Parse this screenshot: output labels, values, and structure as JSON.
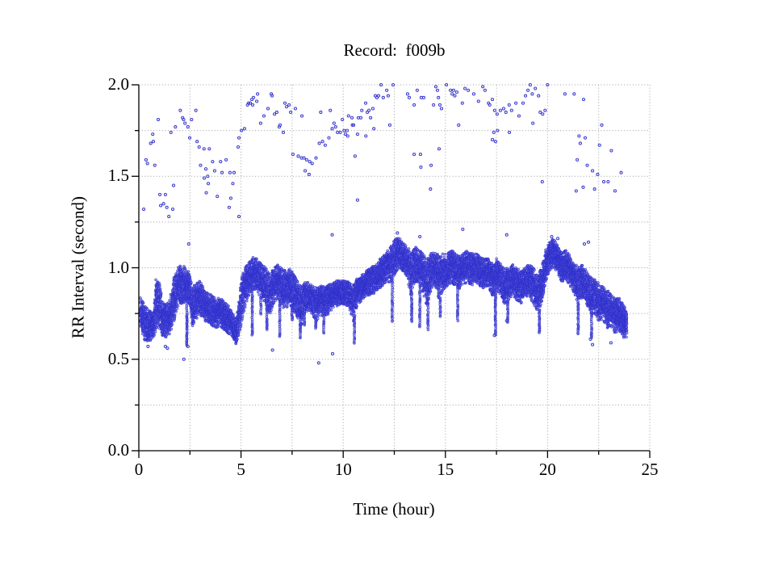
{
  "figure": {
    "background": "#ffffff"
  },
  "chart_data": {
    "type": "scatter",
    "title": "Record:  f009b",
    "xlabel": "Time (hour)",
    "ylabel": "RR Interval (second)",
    "xlim": [
      0,
      25
    ],
    "ylim": [
      0.0,
      2.0
    ],
    "x_major_ticks": [
      0,
      5,
      10,
      15,
      20,
      25
    ],
    "x_tick_labels": [
      "0",
      "5",
      "10",
      "15",
      "20",
      "25"
    ],
    "x_minor_step": 2.5,
    "y_major_ticks": [
      0.0,
      0.5,
      1.0,
      1.5,
      2.0
    ],
    "y_tick_labels": [
      "0.0",
      "0.5",
      "1.0",
      "1.5",
      "2.0"
    ],
    "y_minor_step": 0.25,
    "grid": {
      "style": "dotted",
      "color": "#9f9f9f",
      "at_every_minor_tick": true
    },
    "axis_color": "#000000",
    "marker": {
      "shape": "open-circle",
      "edge_color": "#3434cf",
      "fill_color": "#8585e0",
      "radius_px": 1.4
    },
    "description": "24-hour RR-interval tachogram: dense beat-to-beat band around 0.6-1.15 s plus sparse ectopic/artifact points between 1.1 and 2.0 s; band rendered from envelope, sparse points listed explicitly",
    "band_envelope": [
      [
        0.1,
        0.66,
        0.84
      ],
      [
        0.3,
        0.6,
        0.79
      ],
      [
        0.5,
        0.6,
        0.77
      ],
      [
        0.7,
        0.61,
        0.75
      ],
      [
        0.85,
        0.65,
        0.97
      ],
      [
        1.0,
        0.66,
        0.93
      ],
      [
        1.15,
        0.63,
        0.82
      ],
      [
        1.35,
        0.62,
        0.8
      ],
      [
        1.55,
        0.64,
        0.85
      ],
      [
        1.7,
        0.7,
        0.95
      ],
      [
        1.9,
        0.78,
        1.0
      ],
      [
        2.1,
        0.8,
        1.02
      ],
      [
        2.3,
        0.82,
        1.0
      ],
      [
        2.5,
        0.8,
        0.97
      ],
      [
        2.62,
        0.68,
        0.88
      ],
      [
        2.8,
        0.72,
        0.93
      ],
      [
        3.0,
        0.74,
        0.93
      ],
      [
        3.2,
        0.71,
        0.88
      ],
      [
        3.4,
        0.7,
        0.86
      ],
      [
        3.6,
        0.68,
        0.85
      ],
      [
        3.8,
        0.67,
        0.83
      ],
      [
        4.0,
        0.68,
        0.84
      ],
      [
        4.2,
        0.66,
        0.81
      ],
      [
        4.4,
        0.64,
        0.79
      ],
      [
        4.6,
        0.62,
        0.75
      ],
      [
        4.75,
        0.59,
        0.71
      ],
      [
        4.9,
        0.63,
        0.82
      ],
      [
        5.05,
        0.7,
        0.96
      ],
      [
        5.2,
        0.78,
        1.0
      ],
      [
        5.4,
        0.85,
        1.03
      ],
      [
        5.6,
        0.88,
        1.06
      ],
      [
        5.8,
        0.87,
        1.05
      ],
      [
        6.0,
        0.83,
        1.02
      ],
      [
        6.2,
        0.8,
        1.0
      ],
      [
        6.4,
        0.74,
        0.97
      ],
      [
        6.6,
        0.8,
        1.0
      ],
      [
        6.8,
        0.84,
        1.02
      ],
      [
        7.0,
        0.78,
        1.0
      ],
      [
        7.2,
        0.78,
        0.98
      ],
      [
        7.4,
        0.8,
        1.0
      ],
      [
        7.6,
        0.76,
        0.96
      ],
      [
        7.8,
        0.72,
        0.92
      ],
      [
        7.95,
        0.68,
        0.9
      ],
      [
        8.1,
        0.74,
        0.92
      ],
      [
        8.3,
        0.77,
        0.92
      ],
      [
        8.5,
        0.74,
        0.9
      ],
      [
        8.7,
        0.71,
        0.89
      ],
      [
        8.9,
        0.74,
        0.9
      ],
      [
        9.1,
        0.73,
        0.9
      ],
      [
        9.3,
        0.75,
        0.91
      ],
      [
        9.5,
        0.78,
        0.92
      ],
      [
        9.7,
        0.79,
        0.93
      ],
      [
        9.9,
        0.8,
        0.93
      ],
      [
        10.1,
        0.8,
        0.93
      ],
      [
        10.3,
        0.78,
        0.92
      ],
      [
        10.5,
        0.7,
        0.9
      ],
      [
        10.7,
        0.8,
        0.95
      ],
      [
        10.9,
        0.82,
        0.96
      ],
      [
        11.1,
        0.84,
        0.98
      ],
      [
        11.3,
        0.85,
        1.0
      ],
      [
        11.5,
        0.86,
        1.02
      ],
      [
        11.7,
        0.88,
        1.04
      ],
      [
        11.9,
        0.9,
        1.06
      ],
      [
        12.1,
        0.92,
        1.08
      ],
      [
        12.3,
        0.92,
        1.12
      ],
      [
        12.5,
        0.96,
        1.15
      ],
      [
        12.7,
        1.0,
        1.17
      ],
      [
        12.9,
        0.98,
        1.14
      ],
      [
        13.1,
        0.95,
        1.12
      ],
      [
        13.3,
        0.85,
        1.1
      ],
      [
        13.5,
        0.92,
        1.12
      ],
      [
        13.7,
        0.92,
        1.1
      ],
      [
        13.9,
        0.86,
        1.08
      ],
      [
        14.1,
        0.78,
        1.05
      ],
      [
        14.3,
        0.88,
        1.08
      ],
      [
        14.5,
        0.9,
        1.1
      ],
      [
        14.7,
        0.82,
        1.06
      ],
      [
        14.9,
        0.88,
        1.08
      ],
      [
        15.1,
        0.9,
        1.08
      ],
      [
        15.3,
        0.92,
        1.1
      ],
      [
        15.5,
        0.9,
        1.08
      ],
      [
        15.7,
        0.88,
        1.06
      ],
      [
        15.9,
        0.9,
        1.08
      ],
      [
        16.1,
        0.92,
        1.1
      ],
      [
        16.3,
        0.9,
        1.08
      ],
      [
        16.5,
        0.92,
        1.08
      ],
      [
        16.7,
        0.9,
        1.06
      ],
      [
        16.9,
        0.88,
        1.05
      ],
      [
        17.1,
        0.9,
        1.05
      ],
      [
        17.3,
        0.85,
        1.02
      ],
      [
        17.5,
        0.88,
        1.05
      ],
      [
        17.7,
        0.85,
        1.02
      ],
      [
        17.9,
        0.8,
        1.0
      ],
      [
        18.1,
        0.82,
        1.0
      ],
      [
        18.3,
        0.85,
        1.02
      ],
      [
        18.5,
        0.82,
        1.0
      ],
      [
        18.7,
        0.8,
        0.98
      ],
      [
        18.9,
        0.84,
        1.0
      ],
      [
        19.1,
        0.85,
        1.02
      ],
      [
        19.3,
        0.8,
        1.0
      ],
      [
        19.5,
        0.74,
        0.96
      ],
      [
        19.7,
        0.8,
        1.0
      ],
      [
        19.9,
        0.92,
        1.1
      ],
      [
        20.1,
        0.99,
        1.14
      ],
      [
        20.3,
        1.0,
        1.16
      ],
      [
        20.5,
        0.97,
        1.12
      ],
      [
        20.7,
        0.92,
        1.08
      ],
      [
        20.9,
        0.94,
        1.1
      ],
      [
        21.1,
        0.9,
        1.07
      ],
      [
        21.3,
        0.86,
        1.04
      ],
      [
        21.5,
        0.8,
        1.0
      ],
      [
        21.7,
        0.84,
        1.02
      ],
      [
        21.9,
        0.8,
        0.98
      ],
      [
        22.1,
        0.74,
        0.95
      ],
      [
        22.3,
        0.75,
        0.94
      ],
      [
        22.5,
        0.71,
        0.92
      ],
      [
        22.7,
        0.72,
        0.9
      ],
      [
        22.9,
        0.67,
        0.88
      ],
      [
        23.1,
        0.68,
        0.86
      ],
      [
        23.3,
        0.64,
        0.83
      ],
      [
        23.5,
        0.66,
        0.84
      ],
      [
        23.7,
        0.61,
        0.8
      ],
      [
        23.88,
        0.62,
        0.78
      ]
    ],
    "down_spikes": [
      [
        2.35,
        0.57
      ],
      [
        4.75,
        0.58
      ],
      [
        5.55,
        0.63
      ],
      [
        5.97,
        0.75
      ],
      [
        6.26,
        0.66
      ],
      [
        6.9,
        0.62
      ],
      [
        7.5,
        0.71
      ],
      [
        7.9,
        0.62
      ],
      [
        8.1,
        0.68
      ],
      [
        8.65,
        0.66
      ],
      [
        9.05,
        0.64
      ],
      [
        10.55,
        0.59
      ],
      [
        12.4,
        0.7
      ],
      [
        13.35,
        0.7
      ],
      [
        13.75,
        0.67
      ],
      [
        14.15,
        0.65
      ],
      [
        14.75,
        0.73
      ],
      [
        15.6,
        0.7
      ],
      [
        17.45,
        0.63
      ],
      [
        18.05,
        0.7
      ],
      [
        19.6,
        0.64
      ],
      [
        21.5,
        0.64
      ],
      [
        22.15,
        0.62
      ]
    ],
    "outliers_high": [
      [
        0.24,
        1.32
      ],
      [
        0.35,
        1.59
      ],
      [
        0.42,
        1.57
      ],
      [
        0.58,
        1.68
      ],
      [
        0.68,
        1.73
      ],
      [
        0.71,
        1.69
      ],
      [
        0.78,
        1.56
      ],
      [
        0.95,
        1.81
      ],
      [
        1.03,
        1.4
      ],
      [
        1.07,
        1.34
      ],
      [
        1.21,
        1.35
      ],
      [
        1.3,
        1.4
      ],
      [
        1.37,
        1.33
      ],
      [
        1.47,
        1.28
      ],
      [
        1.57,
        1.74
      ],
      [
        1.66,
        1.32
      ],
      [
        1.7,
        1.45
      ],
      [
        1.79,
        1.77
      ],
      [
        2.03,
        1.86
      ],
      [
        2.14,
        1.82
      ],
      [
        2.19,
        1.81
      ],
      [
        2.26,
        1.79
      ],
      [
        2.4,
        1.77
      ],
      [
        2.44,
        1.13
      ],
      [
        2.49,
        1.71
      ],
      [
        2.58,
        1.81
      ],
      [
        2.79,
        1.86
      ],
      [
        2.85,
        1.69
      ],
      [
        2.95,
        1.66
      ],
      [
        3.02,
        1.56
      ],
      [
        3.19,
        1.65
      ],
      [
        3.2,
        1.49
      ],
      [
        3.28,
        1.54
      ],
      [
        3.3,
        1.41
      ],
      [
        3.37,
        1.5
      ],
      [
        3.4,
        1.46
      ],
      [
        3.45,
        1.65
      ],
      [
        3.61,
        1.58
      ],
      [
        3.71,
        1.53
      ],
      [
        3.84,
        1.39
      ],
      [
        4.0,
        1.58
      ],
      [
        4.07,
        1.52
      ],
      [
        4.27,
        1.59
      ],
      [
        4.42,
        1.33
      ],
      [
        4.46,
        1.52
      ],
      [
        4.5,
        1.38
      ],
      [
        4.6,
        1.46
      ],
      [
        4.66,
        1.52
      ],
      [
        4.9,
        1.28
      ],
      [
        4.86,
        1.66
      ],
      [
        4.9,
        1.71
      ],
      [
        5.02,
        1.75
      ],
      [
        5.17,
        1.76
      ],
      [
        5.32,
        1.89
      ],
      [
        5.37,
        1.9
      ],
      [
        5.45,
        1.9
      ],
      [
        5.53,
        1.92
      ],
      [
        5.57,
        1.89
      ],
      [
        5.61,
        1.93
      ],
      [
        5.77,
        1.91
      ],
      [
        5.81,
        1.95
      ],
      [
        5.96,
        1.79
      ],
      [
        6.12,
        1.83
      ],
      [
        6.32,
        1.87
      ],
      [
        6.48,
        1.95
      ],
      [
        6.52,
        1.94
      ],
      [
        6.64,
        1.84
      ],
      [
        6.75,
        1.85
      ],
      [
        6.87,
        1.77
      ],
      [
        6.91,
        1.78
      ],
      [
        7.07,
        1.74
      ],
      [
        7.15,
        1.9
      ],
      [
        7.23,
        1.88
      ],
      [
        7.35,
        1.89
      ],
      [
        7.43,
        1.85
      ],
      [
        7.54,
        1.62
      ],
      [
        7.66,
        1.87
      ],
      [
        7.8,
        1.61
      ],
      [
        7.96,
        1.6
      ],
      [
        7.98,
        1.83
      ],
      [
        8.08,
        1.6
      ],
      [
        8.14,
        1.53
      ],
      [
        8.21,
        1.59
      ],
      [
        8.33,
        1.51
      ],
      [
        8.36,
        1.58
      ],
      [
        8.48,
        1.57
      ],
      [
        8.67,
        1.6
      ],
      [
        8.83,
        1.68
      ],
      [
        8.9,
        1.85
      ],
      [
        8.99,
        1.69
      ],
      [
        9.12,
        1.67
      ],
      [
        9.3,
        1.71
      ],
      [
        9.37,
        1.86
      ],
      [
        9.46,
        1.76
      ],
      [
        9.55,
        1.79
      ],
      [
        9.63,
        1.77
      ],
      [
        9.72,
        1.74
      ],
      [
        9.86,
        1.74
      ],
      [
        9.96,
        1.81
      ],
      [
        10.05,
        1.75
      ],
      [
        10.11,
        1.73
      ],
      [
        10.19,
        1.75
      ],
      [
        10.22,
        1.72
      ],
      [
        10.26,
        1.83
      ],
      [
        10.43,
        1.82
      ],
      [
        10.45,
        1.78
      ],
      [
        10.51,
        1.78
      ],
      [
        10.58,
        1.61
      ],
      [
        10.7,
        1.73
      ],
      [
        10.7,
        1.37
      ],
      [
        10.74,
        1.82
      ],
      [
        10.86,
        1.82
      ],
      [
        10.91,
        1.86
      ],
      [
        11.1,
        1.9
      ],
      [
        11.11,
        1.72
      ],
      [
        11.18,
        1.85
      ],
      [
        11.26,
        1.86
      ],
      [
        11.34,
        1.82
      ],
      [
        11.45,
        1.87
      ],
      [
        11.5,
        1.76
      ],
      [
        11.57,
        1.94
      ],
      [
        11.65,
        1.93
      ],
      [
        11.73,
        1.94
      ],
      [
        11.85,
        2.0
      ],
      [
        11.96,
        1.93
      ],
      [
        12.13,
        1.97
      ],
      [
        12.2,
        1.94
      ],
      [
        12.28,
        1.78
      ],
      [
        12.44,
        2.0
      ],
      [
        13.15,
        1.95
      ],
      [
        13.23,
        1.93
      ],
      [
        13.47,
        1.89
      ],
      [
        13.47,
        1.62
      ],
      [
        13.62,
        1.97
      ],
      [
        13.78,
        1.62
      ],
      [
        13.8,
        1.55
      ],
      [
        13.82,
        1.93
      ],
      [
        13.94,
        1.93
      ],
      [
        14.27,
        1.43
      ],
      [
        14.3,
        1.56
      ],
      [
        14.42,
        1.89
      ],
      [
        14.53,
        1.99
      ],
      [
        14.61,
        1.97
      ],
      [
        14.66,
        1.93
      ],
      [
        14.69,
        1.65
      ],
      [
        14.73,
        1.89
      ],
      [
        14.81,
        1.87
      ],
      [
        15.05,
        2.0
      ],
      [
        15.25,
        1.97
      ],
      [
        15.33,
        1.95
      ],
      [
        15.4,
        1.97
      ],
      [
        15.46,
        1.94
      ],
      [
        15.56,
        1.96
      ],
      [
        15.65,
        1.78
      ],
      [
        15.83,
        1.9
      ],
      [
        15.96,
        1.98
      ],
      [
        16.12,
        1.97
      ],
      [
        16.39,
        1.95
      ],
      [
        16.62,
        1.91
      ],
      [
        16.83,
        1.99
      ],
      [
        16.94,
        1.97
      ],
      [
        17.11,
        1.9
      ],
      [
        17.17,
        1.89
      ],
      [
        17.3,
        1.92
      ],
      [
        17.3,
        1.7
      ],
      [
        17.37,
        1.74
      ],
      [
        17.41,
        1.86
      ],
      [
        17.45,
        1.69
      ],
      [
        17.53,
        1.84
      ],
      [
        17.55,
        1.75
      ],
      [
        17.69,
        1.86
      ],
      [
        17.85,
        1.87
      ],
      [
        17.96,
        1.85
      ],
      [
        18.12,
        1.89
      ],
      [
        18.13,
        1.74
      ],
      [
        18.24,
        1.86
      ],
      [
        18.45,
        1.9
      ],
      [
        18.6,
        1.83
      ],
      [
        18.8,
        1.9
      ],
      [
        18.92,
        1.94
      ],
      [
        19.04,
        1.97
      ],
      [
        19.15,
        2.0
      ],
      [
        19.25,
        1.95
      ],
      [
        19.28,
        1.79
      ],
      [
        19.4,
        1.98
      ],
      [
        19.56,
        1.94
      ],
      [
        19.64,
        1.85
      ],
      [
        19.74,
        1.47
      ],
      [
        19.76,
        1.84
      ],
      [
        19.88,
        1.86
      ],
      [
        20.0,
        2.0
      ],
      [
        20.85,
        1.95
      ],
      [
        21.3,
        1.95
      ],
      [
        21.4,
        1.42
      ],
      [
        21.45,
        1.59
      ],
      [
        21.54,
        1.72
      ],
      [
        21.6,
        1.68
      ],
      [
        21.74,
        1.44
      ],
      [
        21.76,
        1.92
      ],
      [
        21.84,
        1.71
      ],
      [
        21.94,
        1.56
      ],
      [
        22.2,
        1.53
      ],
      [
        22.3,
        1.43
      ],
      [
        22.45,
        1.51
      ],
      [
        22.54,
        1.67
      ],
      [
        22.65,
        1.78
      ],
      [
        22.75,
        1.47
      ],
      [
        22.96,
        1.47
      ],
      [
        23.12,
        1.64
      ],
      [
        23.3,
        1.42
      ],
      [
        23.6,
        1.52
      ],
      [
        9.46,
        1.18
      ],
      [
        12.65,
        1.19
      ],
      [
        13.75,
        1.17
      ],
      [
        15.85,
        1.21
      ],
      [
        18.0,
        1.18
      ],
      [
        20.2,
        1.17
      ],
      [
        20.5,
        1.16
      ],
      [
        21.8,
        1.13
      ],
      [
        22.0,
        1.14
      ]
    ],
    "outliers_low": [
      [
        0.45,
        0.57
      ],
      [
        1.3,
        0.57
      ],
      [
        1.4,
        0.56
      ],
      [
        2.2,
        0.5
      ],
      [
        2.4,
        0.57
      ],
      [
        6.54,
        0.55
      ],
      [
        8.8,
        0.48
      ],
      [
        9.48,
        0.53
      ],
      [
        17.4,
        0.63
      ],
      [
        18.0,
        0.71
      ],
      [
        22.1,
        0.61
      ],
      [
        22.2,
        0.58
      ],
      [
        23.1,
        0.59
      ]
    ]
  }
}
